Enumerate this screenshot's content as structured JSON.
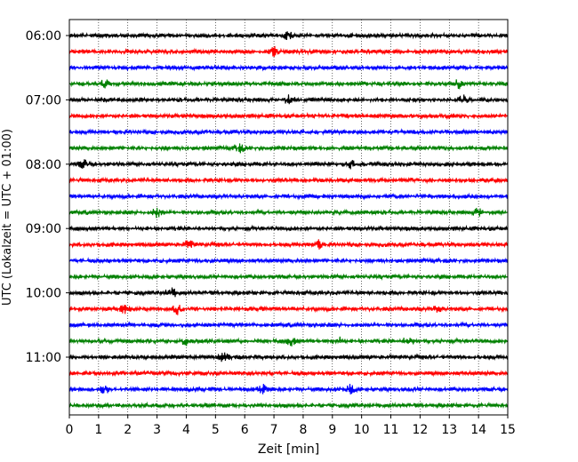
{
  "chart_data": {
    "type": "line",
    "title": "",
    "xlabel": "Zeit  [min]",
    "ylabel": "UTC (Lokalzeit = UTC + 01:00)",
    "xlim": [
      0,
      15
    ],
    "x_ticks": [
      "0",
      "1",
      "2",
      "3",
      "4",
      "5",
      "6",
      "7",
      "8",
      "9",
      "10",
      "11",
      "12",
      "13",
      "14",
      "15"
    ],
    "y_ticks": [
      "06:00",
      "07:00",
      "08:00",
      "09:00",
      "10:00",
      "11:00"
    ],
    "grid": "vertical dotted",
    "trace_colors": [
      "#000000",
      "#ff0000",
      "#0000ff",
      "#008000"
    ],
    "series": [
      {
        "start": "06:00",
        "color": "#000000"
      },
      {
        "start": "06:15",
        "color": "#ff0000"
      },
      {
        "start": "06:30",
        "color": "#0000ff"
      },
      {
        "start": "06:45",
        "color": "#008000"
      },
      {
        "start": "07:00",
        "color": "#000000"
      },
      {
        "start": "07:15",
        "color": "#ff0000"
      },
      {
        "start": "07:30",
        "color": "#0000ff"
      },
      {
        "start": "07:45",
        "color": "#008000"
      },
      {
        "start": "08:00",
        "color": "#000000"
      },
      {
        "start": "08:15",
        "color": "#ff0000"
      },
      {
        "start": "08:30",
        "color": "#0000ff"
      },
      {
        "start": "08:45",
        "color": "#008000"
      },
      {
        "start": "09:00",
        "color": "#000000"
      },
      {
        "start": "09:15",
        "color": "#ff0000"
      },
      {
        "start": "09:30",
        "color": "#0000ff"
      },
      {
        "start": "09:45",
        "color": "#008000"
      },
      {
        "start": "10:00",
        "color": "#000000"
      },
      {
        "start": "10:15",
        "color": "#ff0000"
      },
      {
        "start": "10:30",
        "color": "#0000ff"
      },
      {
        "start": "10:45",
        "color": "#008000"
      },
      {
        "start": "11:00",
        "color": "#000000"
      },
      {
        "start": "11:15",
        "color": "#ff0000"
      },
      {
        "start": "11:30",
        "color": "#0000ff"
      },
      {
        "start": "11:45",
        "color": "#008000"
      }
    ]
  }
}
